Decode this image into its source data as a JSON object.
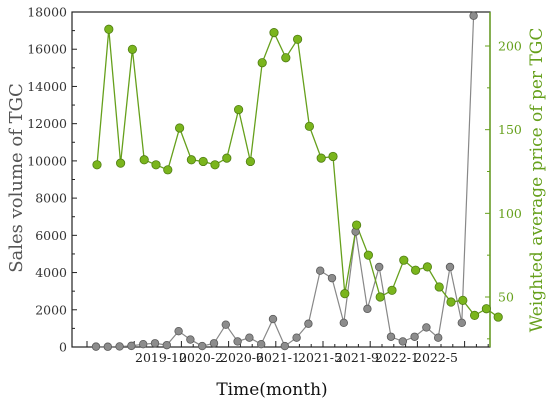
{
  "chart_data": {
    "type": "line",
    "xlabel": "Time(month)",
    "x_tick_labels": [
      "2019-10",
      "2020-2",
      "2020-6",
      "2021-1",
      "2021-5",
      "2021-9",
      "2022-1",
      "2022-5"
    ],
    "y_left": {
      "label": "Sales volume of TGC",
      "range": [
        0,
        18000
      ],
      "ticks": [
        0,
        2000,
        4000,
        6000,
        8000,
        10000,
        12000,
        14000,
        16000,
        18000
      ],
      "color": "#888888"
    },
    "y_right": {
      "label": "Weighted average price of per TGC",
      "ticks": [
        50,
        100,
        150,
        200
      ],
      "color": "#66a01c"
    },
    "series": [
      {
        "axis": "left",
        "color": "#888888",
        "values": [
          20,
          15,
          30,
          60,
          150,
          200,
          100,
          850,
          400,
          50,
          200,
          1200,
          300,
          500,
          150,
          1500,
          50,
          500,
          1250,
          4100,
          3700,
          1300,
          6200,
          2050,
          4300,
          550,
          300,
          550,
          1050,
          500,
          4300,
          1300,
          17800
        ]
      },
      {
        "axis": "right",
        "color": "#66a01c",
        "values": [
          129,
          210,
          130,
          198,
          132,
          129,
          126,
          151,
          132,
          131,
          129,
          133,
          162,
          131,
          190,
          208,
          193,
          204,
          152,
          133,
          134,
          52,
          93,
          75,
          50,
          54,
          72,
          66,
          68,
          56,
          47,
          48,
          39,
          43,
          38
        ]
      }
    ]
  }
}
